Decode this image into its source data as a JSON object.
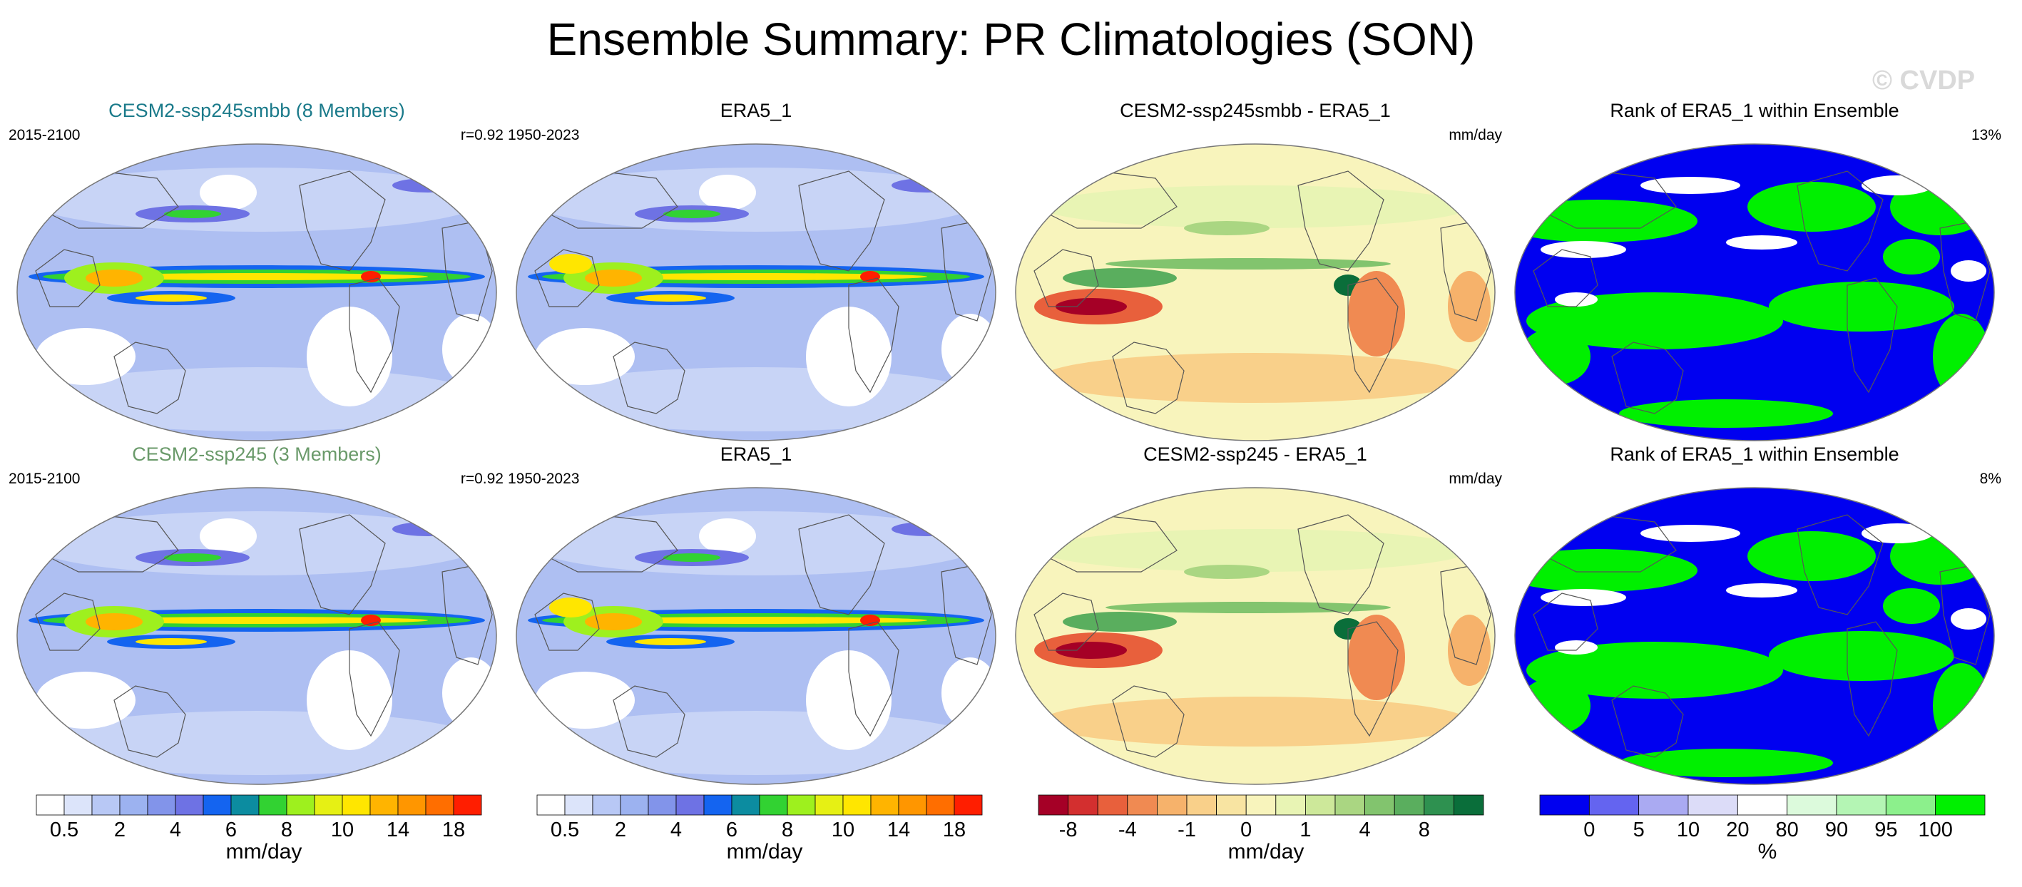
{
  "title": "Ensemble Summary: PR Climatologies (SON)",
  "watermark": "© CVDP",
  "panels": [
    {
      "title": "CESM2-ssp245smbb (8 Members)",
      "title_color": "#1a7a8a",
      "left_label": "2015-2100",
      "right_label": "r=0.92",
      "kind": "clim"
    },
    {
      "title": "ERA5_1",
      "title_color": "#000000",
      "left_label": "1950-2023",
      "right_label": "",
      "kind": "clim"
    },
    {
      "title": "CESM2-ssp245smbb - ERA5_1",
      "title_color": "#000000",
      "left_label": "",
      "right_label": "mm/day",
      "kind": "diff"
    },
    {
      "title": "Rank of ERA5_1 within Ensemble",
      "title_color": "#000000",
      "left_label": "",
      "right_label": "13%",
      "kind": "rank"
    },
    {
      "title": "CESM2-ssp245 (3 Members)",
      "title_color": "#6a9a6a",
      "left_label": "2015-2100",
      "right_label": "r=0.92",
      "kind": "clim"
    },
    {
      "title": "ERA5_1",
      "title_color": "#000000",
      "left_label": "1950-2023",
      "right_label": "",
      "kind": "clim"
    },
    {
      "title": "CESM2-ssp245 - ERA5_1",
      "title_color": "#000000",
      "left_label": "",
      "right_label": "mm/day",
      "kind": "diff"
    },
    {
      "title": "Rank of ERA5_1 within Ensemble",
      "title_color": "#000000",
      "left_label": "",
      "right_label": "8%",
      "kind": "rank"
    }
  ],
  "colorbars": [
    {
      "name": "clim-1",
      "unit": "mm/day",
      "colors": [
        "#ffffff",
        "#dce4fa",
        "#b8c8f5",
        "#9cb2f0",
        "#8294ea",
        "#6e72e4",
        "#1464f0",
        "#0c8ca0",
        "#32d232",
        "#9ef01e",
        "#e6f014",
        "#ffe600",
        "#ffb400",
        "#ff9600",
        "#ff6e00",
        "#ff1e00"
      ],
      "ticks": [
        {
          "i": 1,
          "label": "0.5"
        },
        {
          "i": 3,
          "label": "2"
        },
        {
          "i": 5,
          "label": "4"
        },
        {
          "i": 7,
          "label": "6"
        },
        {
          "i": 9,
          "label": "8"
        },
        {
          "i": 11,
          "label": "10"
        },
        {
          "i": 13,
          "label": "14"
        },
        {
          "i": 15,
          "label": "18"
        }
      ]
    },
    {
      "name": "clim-2",
      "unit": "mm/day",
      "colors": [
        "#ffffff",
        "#dce4fa",
        "#b8c8f5",
        "#9cb2f0",
        "#8294ea",
        "#6e72e4",
        "#1464f0",
        "#0c8ca0",
        "#32d232",
        "#9ef01e",
        "#e6f014",
        "#ffe600",
        "#ffb400",
        "#ff9600",
        "#ff6e00",
        "#ff1e00"
      ],
      "ticks": [
        {
          "i": 1,
          "label": "0.5"
        },
        {
          "i": 3,
          "label": "2"
        },
        {
          "i": 5,
          "label": "4"
        },
        {
          "i": 7,
          "label": "6"
        },
        {
          "i": 9,
          "label": "8"
        },
        {
          "i": 11,
          "label": "10"
        },
        {
          "i": 13,
          "label": "14"
        },
        {
          "i": 15,
          "label": "18"
        }
      ]
    },
    {
      "name": "diff",
      "unit": "mm/day",
      "colors": [
        "#a50026",
        "#d32f2f",
        "#e8603c",
        "#f08a52",
        "#f6b26b",
        "#f9d08a",
        "#f8e4a2",
        "#f8f4bc",
        "#e8f4b4",
        "#cde89a",
        "#aad682",
        "#82c46e",
        "#5aae5e",
        "#2e9150",
        "#0a6e3a"
      ],
      "ticks": [
        {
          "i": 1,
          "label": "-8"
        },
        {
          "i": 3,
          "label": "-4"
        },
        {
          "i": 5,
          "label": "-1"
        },
        {
          "i": 7,
          "label": "0"
        },
        {
          "i": 9,
          "label": "1"
        },
        {
          "i": 11,
          "label": "4"
        },
        {
          "i": 13,
          "label": "8"
        }
      ]
    },
    {
      "name": "rank",
      "unit": "%",
      "colors": [
        "#0000f0",
        "#6464f0",
        "#aaaaf2",
        "#dcdcf8",
        "#ffffff",
        "#dcfadc",
        "#b4f5b4",
        "#8cf08c",
        "#00f000"
      ],
      "ticks": [
        {
          "i": 1,
          "label": "0"
        },
        {
          "i": 2,
          "label": "5"
        },
        {
          "i": 3,
          "label": "10"
        },
        {
          "i": 4,
          "label": "20"
        },
        {
          "i": 5,
          "label": "80"
        },
        {
          "i": 6,
          "label": "90"
        },
        {
          "i": 7,
          "label": "95"
        },
        {
          "i": 8,
          "label": "100"
        }
      ]
    }
  ],
  "chart_data": {
    "type": "heatmap",
    "title": "Ensemble Summary: PR Climatologies (SON)",
    "variable": "PR",
    "season": "SON",
    "units": "mm/day",
    "rows": [
      {
        "model": "CESM2-ssp245smbb",
        "members": 8,
        "model_period": "2015-2100",
        "obs": "ERA5_1",
        "obs_period": "1950-2023",
        "pattern_correlation": 0.92,
        "rank_percent": 13
      },
      {
        "model": "CESM2-ssp245",
        "members": 3,
        "model_period": "2015-2100",
        "obs": "ERA5_1",
        "obs_period": "1950-2023",
        "pattern_correlation": 0.92,
        "rank_percent": 8
      }
    ],
    "clim_levels": [
      0.5,
      1,
      2,
      3,
      4,
      5,
      6,
      7,
      8,
      9,
      10,
      12,
      14,
      16,
      18
    ],
    "diff_levels": [
      -8,
      -6,
      -4,
      -2,
      -1,
      -0.5,
      0,
      0.5,
      1,
      2,
      4,
      6,
      8
    ],
    "rank_levels": [
      0,
      5,
      10,
      20,
      80,
      90,
      95,
      100
    ]
  }
}
